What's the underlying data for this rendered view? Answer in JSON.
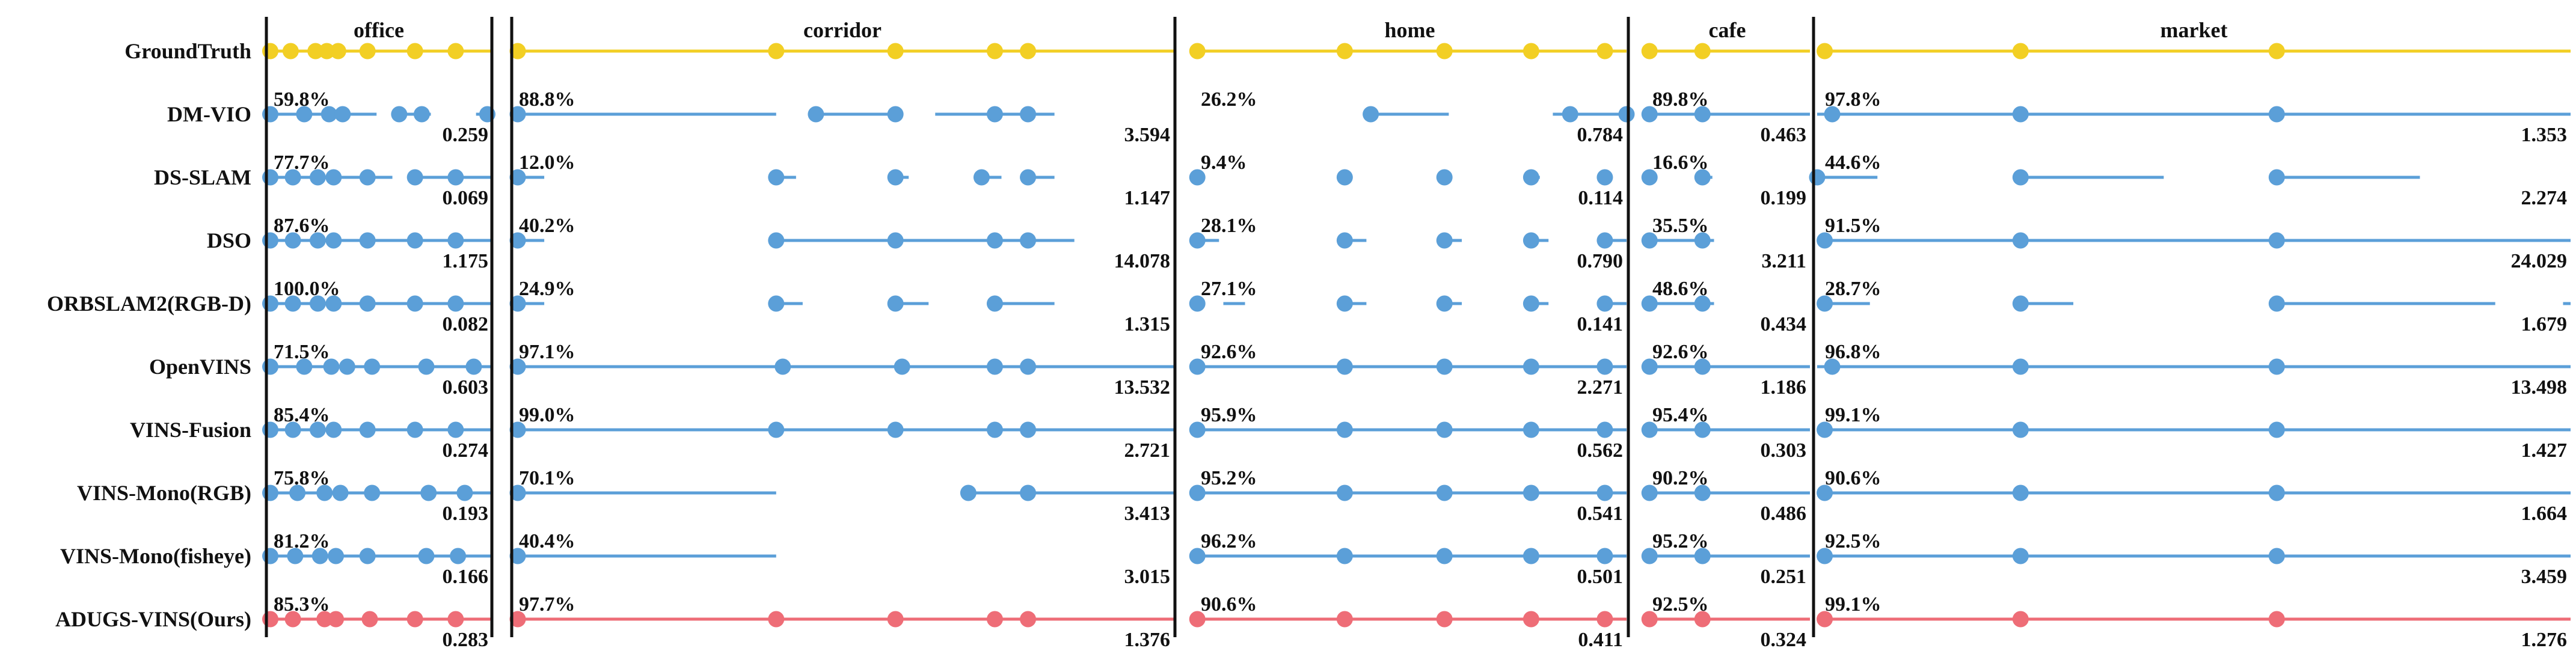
{
  "chart_data": {
    "type": "timeline",
    "colors": {
      "ground_truth": "#F2CF24",
      "method": "#5B9FD8",
      "ours": "#EE6D77",
      "separator": "#111111"
    },
    "scenes": [
      {
        "name": "office",
        "gt_points": [
          0.02,
          0.11,
          0.22,
          0.27,
          0.32,
          0.45,
          0.66,
          0.84
        ]
      },
      {
        "name": "corridor",
        "gt_points": [
          0.01,
          0.4,
          0.58,
          0.73,
          0.78
        ]
      },
      {
        "name": "home",
        "gt_points": [
          0.01,
          0.35,
          0.58,
          0.78,
          0.95
        ]
      },
      {
        "name": "cafe",
        "gt_points": [
          0.03,
          0.35
        ]
      },
      {
        "name": "market",
        "gt_points": [
          0.01,
          0.27,
          0.61
        ]
      }
    ],
    "rows": [
      {
        "name": "GroundTruth",
        "ours": false,
        "entries": []
      },
      {
        "name": "DM-VIO",
        "ours": false,
        "entries": [
          {
            "percent": "59.8%",
            "value": "0.259",
            "segments": [
              [
                0.0,
                0.49
              ],
              [
                0.59,
                0.73
              ],
              [
                0.93,
                1.0
              ]
            ],
            "dots": [
              0.02,
              0.17,
              0.28,
              0.34,
              0.59,
              0.69,
              0.98
            ]
          },
          {
            "percent": "88.8%",
            "value": "3.594",
            "segments": [
              [
                0.0,
                0.4
              ],
              [
                0.46,
                0.57
              ],
              [
                0.64,
                0.82
              ]
            ],
            "dots": [
              0.01,
              0.46,
              0.58,
              0.73,
              0.78
            ]
          },
          {
            "percent": "26.2%",
            "value": "0.784",
            "segments": [
              [
                0.41,
                0.59
              ],
              [
                0.83,
                1.0
              ]
            ],
            "dots": [
              0.41,
              0.87,
              1.0
            ]
          },
          {
            "percent": "89.8%",
            "value": "0.463",
            "segments": [
              [
                0.0,
                1.0
              ]
            ],
            "dots": [
              0.03,
              0.35
            ]
          },
          {
            "percent": "97.8%",
            "value": "1.353",
            "segments": [
              [
                0.0,
                1.0
              ]
            ],
            "dots": [
              0.02,
              0.27,
              0.61
            ]
          }
        ]
      },
      {
        "name": "DS-SLAM",
        "ours": false,
        "entries": [
          {
            "percent": "77.7%",
            "value": "0.069",
            "segments": [
              [
                0.0,
                0.56
              ],
              [
                0.66,
                1.0
              ]
            ],
            "dots": [
              0.02,
              0.12,
              0.23,
              0.3,
              0.45,
              0.66,
              0.84
            ]
          },
          {
            "percent": "12.0%",
            "value": "1.147",
            "segments": [
              [
                0.0,
                0.05
              ],
              [
                0.4,
                0.43
              ],
              [
                0.58,
                0.6
              ],
              [
                0.71,
                0.74
              ],
              [
                0.78,
                0.82
              ]
            ],
            "dots": [
              0.01,
              0.4,
              0.58,
              0.71,
              0.78
            ]
          },
          {
            "percent": "9.4%",
            "value": "0.114",
            "segments": [
              [
                0.78,
                0.8
              ]
            ],
            "dots": [
              0.01,
              0.35,
              0.58,
              0.78,
              0.95
            ]
          },
          {
            "percent": "16.6%",
            "value": "0.199",
            "segments": [
              [
                0.35,
                0.41
              ]
            ],
            "dots": [
              0.03,
              0.35
            ]
          },
          {
            "percent": "44.6%",
            "value": "2.274",
            "segments": [
              [
                0.0,
                0.08
              ],
              [
                0.27,
                0.46
              ],
              [
                0.61,
                0.8
              ]
            ],
            "dots": [
              0.0,
              0.27,
              0.61
            ]
          }
        ]
      },
      {
        "name": "DSO",
        "ours": false,
        "entries": [
          {
            "percent": "87.6%",
            "value": "1.175",
            "segments": [
              [
                0.0,
                1.0
              ]
            ],
            "dots": [
              0.02,
              0.12,
              0.23,
              0.3,
              0.45,
              0.66,
              0.84
            ]
          },
          {
            "percent": "40.2%",
            "value": "14.078",
            "segments": [
              [
                0.0,
                0.05
              ],
              [
                0.4,
                0.85
              ]
            ],
            "dots": [
              0.01,
              0.4,
              0.58,
              0.73,
              0.78
            ]
          },
          {
            "percent": "28.1%",
            "value": "0.790",
            "segments": [
              [
                0.0,
                0.06
              ],
              [
                0.35,
                0.4
              ],
              [
                0.58,
                0.62
              ],
              [
                0.78,
                0.82
              ],
              [
                0.95,
                1.0
              ]
            ],
            "dots": [
              0.01,
              0.35,
              0.58,
              0.78,
              0.95
            ]
          },
          {
            "percent": "35.5%",
            "value": "3.211",
            "segments": [
              [
                0.0,
                0.42
              ]
            ],
            "dots": [
              0.03,
              0.35
            ]
          },
          {
            "percent": "91.5%",
            "value": "24.029",
            "segments": [
              [
                0.0,
                1.0
              ]
            ],
            "dots": [
              0.01,
              0.27,
              0.61
            ]
          }
        ]
      },
      {
        "name": "ORBSLAM2(RGB-D)",
        "ours": false,
        "entries": [
          {
            "percent": "100.0%",
            "value": "0.082",
            "segments": [
              [
                0.0,
                1.0
              ]
            ],
            "dots": [
              0.02,
              0.12,
              0.23,
              0.3,
              0.45,
              0.66,
              0.84
            ]
          },
          {
            "percent": "24.9%",
            "value": "1.315",
            "segments": [
              [
                0.0,
                0.05
              ],
              [
                0.4,
                0.44
              ],
              [
                0.58,
                0.63
              ],
              [
                0.73,
                0.82
              ]
            ],
            "dots": [
              0.01,
              0.4,
              0.58,
              0.73
            ]
          },
          {
            "percent": "27.1%",
            "value": "0.141",
            "segments": [
              [
                0.07,
                0.12
              ],
              [
                0.35,
                0.4
              ],
              [
                0.58,
                0.62
              ],
              [
                0.78,
                0.82
              ],
              [
                0.95,
                1.0
              ]
            ],
            "dots": [
              0.01,
              0.35,
              0.58,
              0.78,
              0.95
            ]
          },
          {
            "percent": "48.6%",
            "value": "0.434",
            "segments": [
              [
                0.0,
                0.42
              ]
            ],
            "dots": [
              0.03,
              0.35
            ]
          },
          {
            "percent": "28.7%",
            "value": "1.679",
            "segments": [
              [
                0.0,
                0.07
              ],
              [
                0.27,
                0.34
              ],
              [
                0.61,
                0.9
              ],
              [
                0.99,
                1.0
              ]
            ],
            "dots": [
              0.01,
              0.27,
              0.61
            ]
          }
        ]
      },
      {
        "name": "OpenVINS",
        "ours": false,
        "entries": [
          {
            "percent": "71.5%",
            "value": "0.603",
            "segments": [
              [
                0.0,
                1.0
              ]
            ],
            "dots": [
              0.02,
              0.17,
              0.29,
              0.36,
              0.47,
              0.71,
              0.92
            ]
          },
          {
            "percent": "97.1%",
            "value": "13.532",
            "segments": [
              [
                0.0,
                1.0
              ]
            ],
            "dots": [
              0.01,
              0.41,
              0.59,
              0.73,
              0.78
            ]
          },
          {
            "percent": "92.6%",
            "value": "2.271",
            "segments": [
              [
                0.0,
                1.0
              ]
            ],
            "dots": [
              0.01,
              0.35,
              0.58,
              0.78,
              0.95
            ]
          },
          {
            "percent": "92.6%",
            "value": "1.186",
            "segments": [
              [
                0.0,
                1.0
              ]
            ],
            "dots": [
              0.03,
              0.35
            ]
          },
          {
            "percent": "96.8%",
            "value": "13.498",
            "segments": [
              [
                0.0,
                1.0
              ]
            ],
            "dots": [
              0.02,
              0.27,
              0.61
            ]
          }
        ]
      },
      {
        "name": "VINS-Fusion",
        "ours": false,
        "entries": [
          {
            "percent": "85.4%",
            "value": "0.274",
            "segments": [
              [
                0.0,
                1.0
              ]
            ],
            "dots": [
              0.02,
              0.12,
              0.23,
              0.3,
              0.45,
              0.66,
              0.84
            ]
          },
          {
            "percent": "99.0%",
            "value": "2.721",
            "segments": [
              [
                0.0,
                1.0
              ]
            ],
            "dots": [
              0.01,
              0.4,
              0.58,
              0.73,
              0.78
            ]
          },
          {
            "percent": "95.9%",
            "value": "0.562",
            "segments": [
              [
                0.0,
                1.0
              ]
            ],
            "dots": [
              0.01,
              0.35,
              0.58,
              0.78,
              0.95
            ]
          },
          {
            "percent": "95.4%",
            "value": "0.303",
            "segments": [
              [
                0.0,
                1.0
              ]
            ],
            "dots": [
              0.03,
              0.35
            ]
          },
          {
            "percent": "99.1%",
            "value": "1.427",
            "segments": [
              [
                0.0,
                1.0
              ]
            ],
            "dots": [
              0.01,
              0.27,
              0.61
            ]
          }
        ]
      },
      {
        "name": "VINS-Mono(RGB)",
        "ours": false,
        "entries": [
          {
            "percent": "75.8%",
            "value": "0.193",
            "segments": [
              [
                0.0,
                1.0
              ]
            ],
            "dots": [
              0.02,
              0.14,
              0.26,
              0.33,
              0.47,
              0.72,
              0.88
            ]
          },
          {
            "percent": "70.1%",
            "value": "3.413",
            "segments": [
              [
                0.0,
                0.4
              ],
              [
                0.69,
                1.0
              ]
            ],
            "dots": [
              0.01,
              0.69,
              0.78
            ]
          },
          {
            "percent": "95.2%",
            "value": "0.541",
            "segments": [
              [
                0.0,
                1.0
              ]
            ],
            "dots": [
              0.01,
              0.35,
              0.58,
              0.78,
              0.95
            ]
          },
          {
            "percent": "90.2%",
            "value": "0.486",
            "segments": [
              [
                0.0,
                1.0
              ]
            ],
            "dots": [
              0.03,
              0.35
            ]
          },
          {
            "percent": "90.6%",
            "value": "1.664",
            "segments": [
              [
                0.0,
                1.0
              ]
            ],
            "dots": [
              0.01,
              0.27,
              0.61
            ]
          }
        ]
      },
      {
        "name": "VINS-Mono(fisheye)",
        "ours": false,
        "entries": [
          {
            "percent": "81.2%",
            "value": "0.166",
            "segments": [
              [
                0.0,
                1.0
              ]
            ],
            "dots": [
              0.02,
              0.13,
              0.24,
              0.31,
              0.45,
              0.71,
              0.85
            ]
          },
          {
            "percent": "40.4%",
            "value": "3.015",
            "segments": [
              [
                0.0,
                0.4
              ]
            ],
            "dots": [
              0.01
            ]
          },
          {
            "percent": "96.2%",
            "value": "0.501",
            "segments": [
              [
                0.0,
                1.0
              ]
            ],
            "dots": [
              0.01,
              0.35,
              0.58,
              0.78,
              0.95
            ]
          },
          {
            "percent": "95.2%",
            "value": "0.251",
            "segments": [
              [
                0.0,
                1.0
              ]
            ],
            "dots": [
              0.03,
              0.35
            ]
          },
          {
            "percent": "92.5%",
            "value": "3.459",
            "segments": [
              [
                0.0,
                1.0
              ]
            ],
            "dots": [
              0.01,
              0.27,
              0.61
            ]
          }
        ]
      },
      {
        "name": "ADUGS-VINS(Ours)",
        "ours": true,
        "entries": [
          {
            "percent": "85.3%",
            "value": "0.283",
            "segments": [
              [
                0.0,
                1.0
              ]
            ],
            "dots": [
              0.02,
              0.12,
              0.26,
              0.31,
              0.46,
              0.66,
              0.84
            ]
          },
          {
            "percent": "97.7%",
            "value": "1.376",
            "segments": [
              [
                0.0,
                1.0
              ]
            ],
            "dots": [
              0.01,
              0.4,
              0.58,
              0.73,
              0.78
            ]
          },
          {
            "percent": "90.6%",
            "value": "0.411",
            "segments": [
              [
                0.0,
                1.0
              ]
            ],
            "dots": [
              0.01,
              0.35,
              0.58,
              0.78,
              0.95
            ]
          },
          {
            "percent": "92.5%",
            "value": "0.324",
            "segments": [
              [
                0.0,
                1.0
              ]
            ],
            "dots": [
              0.03,
              0.35
            ]
          },
          {
            "percent": "99.1%",
            "value": "1.276",
            "segments": [
              [
                0.0,
                1.0
              ]
            ],
            "dots": [
              0.01,
              0.27,
              0.61
            ]
          }
        ]
      }
    ]
  }
}
